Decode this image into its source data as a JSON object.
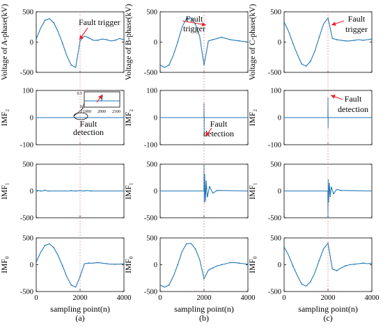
{
  "chart_data": {
    "type": "line",
    "x_axis": {
      "label": "sampling point(n)",
      "range": [
        0,
        4000
      ],
      "ticks": [
        "0",
        "2000",
        "4000"
      ]
    },
    "fault_point": 2000,
    "columns": [
      {
        "caption": "(a)",
        "rows": [
          {
            "ylabel": "Voltage of A-phase(kV)",
            "ylim": [
              -500,
              500
            ],
            "yticks": [
              "500",
              "0",
              "-500"
            ],
            "annotation": "Fault trigger",
            "series": [
              {
                "x": [
                  0,
                  200,
                  400,
                  600,
                  800,
                  1000,
                  1200,
                  1400,
                  1600,
                  1800,
                  2000,
                  2200,
                  2400,
                  2600,
                  2800,
                  3000,
                  3200,
                  3400,
                  3600,
                  3800,
                  4000
                ],
                "y": [
                  50,
                  230,
                  360,
                  390,
                  320,
                  170,
                  -20,
                  -230,
                  -380,
                  -420,
                  20,
                  100,
                  70,
                  30,
                  30,
                  50,
                  40,
                  20,
                  30,
                  60,
                  40
                ]
              }
            ]
          },
          {
            "ylabel": "IMF₂",
            "ylim": [
              -100,
              100
            ],
            "yticks": [
              "100",
              "0",
              "-100"
            ],
            "annotation": "Fault detection",
            "inset": {
              "xticks": [
                "1900",
                "2000",
                "2100"
              ],
              "yticks": [
                "0.5",
                "0"
              ]
            },
            "series": [
              {
                "x": [
                  0,
                  2000,
                  4000
                ],
                "y": [
                  0,
                  0,
                  0
                ]
              }
            ]
          },
          {
            "ylabel": "IMF₁",
            "ylim": [
              -500,
              500
            ],
            "yticks": [
              "500",
              "0",
              "-500"
            ],
            "series": [
              {
                "x": [
                  0,
                  100,
                  200,
                  300,
                  400,
                  500,
                  600,
                  1500,
                  1600,
                  1700,
                  1800,
                  2000,
                  2200,
                  2300,
                  2500,
                  4000
                ],
                "y": [
                  0,
                  10,
                  0,
                  0,
                  15,
                  0,
                  0,
                  0,
                  8,
                  0,
                  0,
                  5,
                  0,
                  10,
                  0,
                  0
                ]
              }
            ]
          },
          {
            "ylabel": "IMF₀",
            "ylim": [
              -500,
              500
            ],
            "yticks": [
              "500",
              "0",
              "-500"
            ],
            "series": [
              {
                "x": [
                  0,
                  200,
                  400,
                  600,
                  800,
                  1000,
                  1200,
                  1400,
                  1600,
                  1800,
                  2000,
                  2200,
                  2400,
                  2600,
                  2800,
                  3000,
                  3200,
                  3400,
                  3600,
                  3800,
                  4000
                ],
                "y": [
                  50,
                  230,
                  360,
                  390,
                  320,
                  170,
                  -20,
                  -230,
                  -380,
                  -420,
                  -220,
                  20,
                  30,
                  30,
                  40,
                  30,
                  20,
                  10,
                  10,
                  10,
                  20
                ]
              }
            ]
          }
        ]
      },
      {
        "caption": "(b)",
        "rows": [
          {
            "ylabel": "Voltage of B-phase(kV)",
            "ylim": [
              -500,
              500
            ],
            "yticks": [
              "500",
              "0",
              "-500"
            ],
            "annotation": "Fault trigger",
            "series": [
              {
                "x": [
                  0,
                  200,
                  400,
                  600,
                  800,
                  1000,
                  1200,
                  1400,
                  1600,
                  1800,
                  2000,
                  2200,
                  2400,
                  2600,
                  2800,
                  3000,
                  3200,
                  3400,
                  3600,
                  3800,
                  4000
                ],
                "y": [
                  -380,
                  -420,
                  -380,
                  -220,
                  0,
                  250,
                  390,
                  400,
                  300,
                  100,
                  -380,
                  20,
                  40,
                  60,
                  80,
                  60,
                  40,
                  30,
                  20,
                  10,
                  0
                ]
              }
            ]
          },
          {
            "ylabel": "IMF₂",
            "ylim": [
              -100,
              100
            ],
            "yticks": [
              "100",
              "0",
              "-100"
            ],
            "annotation": "Fault detection",
            "series": [
              {
                "x": [
                  0,
                  1995,
                  2000,
                  2005,
                  2010,
                  4000
                ],
                "y": [
                  0,
                  0,
                  50,
                  -70,
                  0,
                  0
                ]
              }
            ]
          },
          {
            "ylabel": "IMF₁",
            "ylim": [
              -500,
              500
            ],
            "yticks": [
              "500",
              "0",
              "-500"
            ],
            "series": [
              {
                "x": [
                  0,
                  1990,
                  2000,
                  2010,
                  2030,
                  2060,
                  2100,
                  2150,
                  2250,
                  2400,
                  2600,
                  4000
                ],
                "y": [
                  0,
                  0,
                  470,
                  -220,
                  300,
                  -200,
                  180,
                  -120,
                  80,
                  -40,
                  10,
                  0
                ]
              }
            ]
          },
          {
            "ylabel": "IMF₀",
            "ylim": [
              -500,
              500
            ],
            "yticks": [
              "500",
              "0",
              "-500"
            ],
            "series": [
              {
                "x": [
                  0,
                  200,
                  400,
                  600,
                  800,
                  1000,
                  1200,
                  1400,
                  1600,
                  1800,
                  2000,
                  2200,
                  2400,
                  2600,
                  2800,
                  3000,
                  3200,
                  3400,
                  3600,
                  3800,
                  4000
                ],
                "y": [
                  -380,
                  -420,
                  -380,
                  -220,
                  0,
                  250,
                  390,
                  400,
                  300,
                  100,
                  -260,
                  -100,
                  -60,
                  -20,
                  0,
                  20,
                  40,
                  40,
                  30,
                  20,
                  10
                ]
              }
            ]
          }
        ]
      },
      {
        "caption": "(c)",
        "rows": [
          {
            "ylabel": "Voltage of C-phase(kV)",
            "ylim": [
              -500,
              500
            ],
            "yticks": [
              "500",
              "0",
              "-500"
            ],
            "annotation": "Fault trigger",
            "series": [
              {
                "x": [
                  0,
                  200,
                  400,
                  600,
                  800,
                  1000,
                  1200,
                  1400,
                  1600,
                  1800,
                  2000,
                  2200,
                  2400,
                  2600,
                  2800,
                  3000,
                  3200,
                  3400,
                  3600,
                  3800,
                  4000
                ],
                "y": [
                  330,
                  180,
                  -20,
                  -200,
                  -360,
                  -400,
                  -320,
                  -150,
                  80,
                  300,
                  400,
                  60,
                  40,
                  30,
                  20,
                  20,
                  30,
                  40,
                  30,
                  40,
                  50
                ]
              }
            ]
          },
          {
            "ylabel": "IMF₂",
            "ylim": [
              -100,
              100
            ],
            "yticks": [
              "100",
              "0",
              "-100"
            ],
            "annotation": "Fault detection",
            "series": [
              {
                "x": [
                  0,
                  1995,
                  2000,
                  2005,
                  2010,
                  4000
                ],
                "y": [
                  0,
                  0,
                  70,
                  -40,
                  0,
                  0
                ]
              }
            ]
          },
          {
            "ylabel": "IMF₁",
            "ylim": [
              -500,
              500
            ],
            "yticks": [
              "500",
              "0",
              "-500"
            ],
            "series": [
              {
                "x": [
                  0,
                  1990,
                  2000,
                  2010,
                  2030,
                  2060,
                  2100,
                  2150,
                  2250,
                  2400,
                  2600,
                  4000
                ],
                "y": [
                  0,
                  0,
                  -480,
                  220,
                  -200,
                  150,
                  -100,
                  80,
                  -50,
                  30,
                  10,
                  0
                ]
              }
            ]
          },
          {
            "ylabel": "IMF₀",
            "ylim": [
              -500,
              500
            ],
            "yticks": [
              "500",
              "0",
              "-500"
            ],
            "series": [
              {
                "x": [
                  0,
                  200,
                  400,
                  600,
                  800,
                  1000,
                  1200,
                  1400,
                  1600,
                  1800,
                  2000,
                  2200,
                  2400,
                  2600,
                  2800,
                  3000,
                  3200,
                  3400,
                  3600,
                  3800,
                  4000
                ],
                "y": [
                  330,
                  180,
                  -20,
                  -200,
                  -360,
                  -400,
                  -320,
                  -150,
                  80,
                  300,
                  400,
                  -80,
                  -110,
                  -60,
                  -20,
                  0,
                  10,
                  20,
                  30,
                  20,
                  30
                ]
              }
            ]
          }
        ]
      }
    ]
  }
}
